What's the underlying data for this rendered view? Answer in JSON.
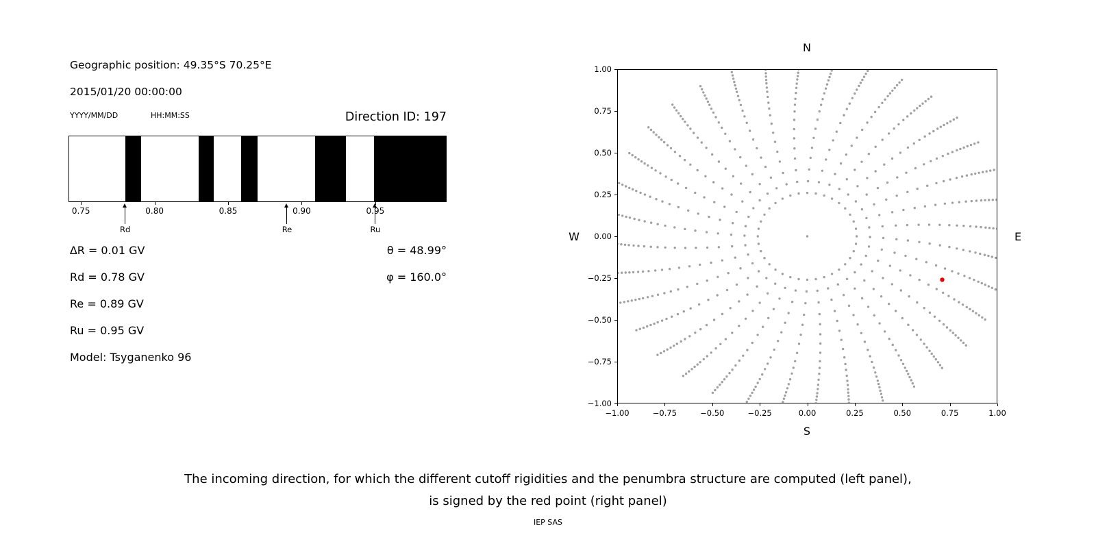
{
  "colors": {
    "background": "#ffffff",
    "band": "#000000",
    "axis": "#000000",
    "text": "#000000"
  },
  "left_panel": {
    "geo_position": "Geographic position: 49.35°S 70.25°E",
    "datetime": "2015/01/20 00:00:00",
    "date_format_label": "YYYY/MM/DD",
    "time_format_label": "HH:MM:SS",
    "direction_id": "Direction ID: 197",
    "delta_r": "∆R = 0.01 GV",
    "rd": "Rd = 0.78 GV",
    "re": "Re = 0.89 GV",
    "ru": "Ru = 0.95 GV",
    "model": "Model: Tsyganenko 96",
    "theta": "θ = 48.99°",
    "phi": "φ = 160.0°"
  },
  "caption": {
    "line1": "The incoming direction, for which the different cutoff rigidities and the penumbra structure are computed (left panel),",
    "line2": "is signed by the red point (right panel)",
    "credit": "IEP SAS"
  },
  "chart_data": [
    {
      "type": "bar",
      "name": "penumbra-structure",
      "xlim": [
        0.742,
        0.998
      ],
      "x_ticks": [
        0.75,
        0.8,
        0.85,
        0.9,
        0.95
      ],
      "x_tick_labels": [
        "0.75",
        "0.80",
        "0.85",
        "0.90",
        "0.95"
      ],
      "forbidden_bands_gv": [
        [
          0.78,
          0.791
        ],
        [
          0.83,
          0.84
        ],
        [
          0.859,
          0.87
        ],
        [
          0.909,
          0.93
        ],
        [
          0.949,
          0.998
        ]
      ],
      "markers": [
        {
          "label": "Rd",
          "value": 0.78
        },
        {
          "label": "Re",
          "value": 0.89
        },
        {
          "label": "Ru",
          "value": 0.95
        }
      ]
    },
    {
      "type": "scatter",
      "name": "incoming-direction-map",
      "xlim": [
        -1,
        1
      ],
      "ylim": [
        -1,
        1
      ],
      "x_ticks": [
        -1,
        -0.75,
        -0.5,
        -0.25,
        0,
        0.25,
        0.5,
        0.75,
        1
      ],
      "x_tick_labels": [
        "−1.00",
        "−0.75",
        "−0.50",
        "−0.25",
        "0.00",
        "0.25",
        "0.50",
        "0.75",
        "1.00"
      ],
      "y_ticks": [
        1,
        0.75,
        0.5,
        0.25,
        0,
        -0.25,
        -0.5,
        -0.75,
        -1
      ],
      "y_tick_labels": [
        "1.00",
        "0.75",
        "0.50",
        "0.25",
        "0.00",
        "−0.25",
        "−0.50",
        "−0.75",
        "−1.00"
      ],
      "compass": {
        "top": "N",
        "bottom": "S",
        "left": "W",
        "right": "E"
      },
      "red_point": {
        "x": 0.71,
        "y": -0.26
      },
      "dot_color": "#8f8f8f",
      "red_color": "#e8000b",
      "gray_points": {
        "description": "radial grid of candidate incoming directions",
        "azimuth_count": 36,
        "azimuth_step_deg": 10,
        "curvature_deg_per_unit_radius": 10,
        "radii": [
          0.26,
          0.33,
          0.4,
          0.47,
          0.53,
          0.59,
          0.645,
          0.7,
          0.75,
          0.79,
          0.825,
          0.86,
          0.89,
          0.915,
          0.94,
          0.96,
          0.98,
          1.0,
          1.02,
          1.04,
          1.06
        ],
        "center_dot": true
      }
    }
  ]
}
